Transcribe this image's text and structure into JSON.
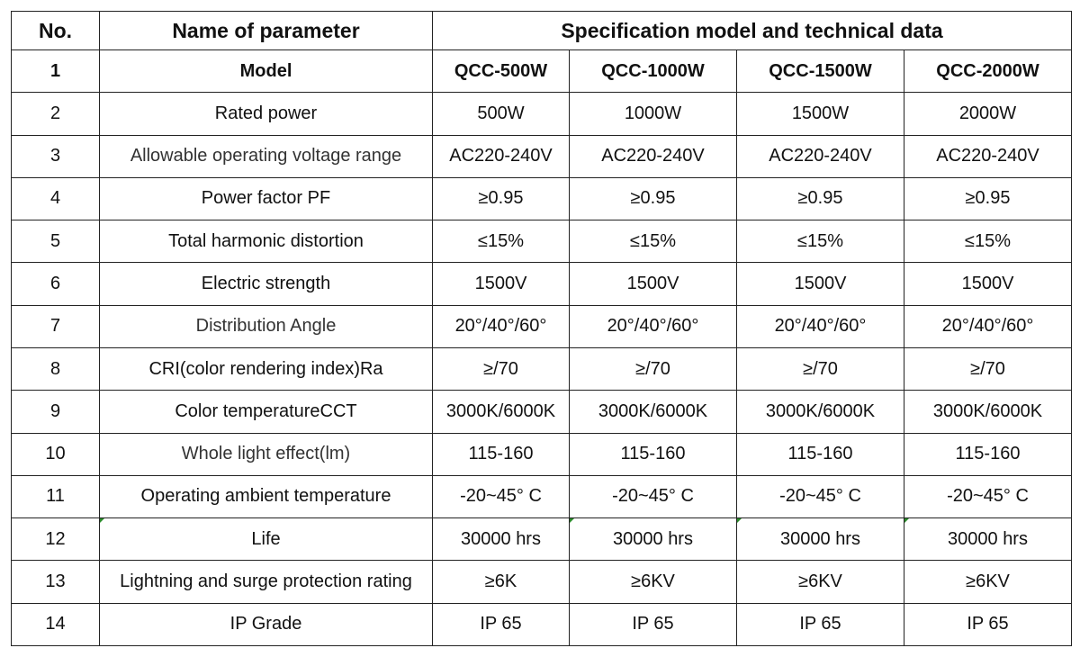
{
  "header": {
    "no": "No.",
    "parameter": "Name of parameter",
    "spec": "Specification model and technical data"
  },
  "rows": [
    {
      "no": "1",
      "name": "Model",
      "values": [
        "QCC-500W",
        "QCC-1000W",
        "QCC-1500W",
        "QCC-2000W"
      ]
    },
    {
      "no": "2",
      "name": "Rated power",
      "values": [
        "500W",
        "1000W",
        "1500W",
        "2000W"
      ]
    },
    {
      "no": "3",
      "name": "Allowable operating voltage range",
      "values": [
        "AC220-240V",
        "AC220-240V",
        "AC220-240V",
        "AC220-240V"
      ]
    },
    {
      "no": "4",
      "name": "Power factor PF",
      "values": [
        "≥0.95",
        "≥0.95",
        "≥0.95",
        "≥0.95"
      ]
    },
    {
      "no": "5",
      "name": "Total harmonic distortion",
      "values": [
        "≤15%",
        "≤15%",
        "≤15%",
        "≤15%"
      ]
    },
    {
      "no": "6",
      "name": "Electric strength",
      "values": [
        "1500V",
        "1500V",
        "1500V",
        "1500V"
      ]
    },
    {
      "no": "7",
      "name": "Distribution Angle",
      "values": [
        "20°/40°/60°",
        "20°/40°/60°",
        "20°/40°/60°",
        "20°/40°/60°"
      ]
    },
    {
      "no": "8",
      "name": "CRI(color rendering index)Ra",
      "values": [
        "≥/70",
        "≥/70",
        "≥/70",
        "≥/70"
      ]
    },
    {
      "no": "9",
      "name": "Color temperatureCCT",
      "values": [
        "3000K/6000K",
        "3000K/6000K",
        "3000K/6000K",
        "3000K/6000K"
      ]
    },
    {
      "no": "10",
      "name": "Whole light effect(lm)",
      "values": [
        "115-160",
        "115-160",
        "115-160",
        "115-160"
      ]
    },
    {
      "no": "11",
      "name": "Operating ambient temperature",
      "values": [
        "-20~45° C",
        "-20~45° C",
        "-20~45° C",
        "-20~45° C"
      ]
    },
    {
      "no": "12",
      "name": "Life",
      "values": [
        "30000 hrs",
        "30000 hrs",
        "30000 hrs",
        "30000 hrs"
      ]
    },
    {
      "no": "13",
      "name": "Lightning and surge protection rating",
      "values": [
        "≥6K",
        "≥6KV",
        "≥6KV",
        "≥6KV"
      ]
    },
    {
      "no": "14",
      "name": "IP Grade",
      "values": [
        "IP 65",
        "IP 65",
        "IP 65",
        "IP 65"
      ]
    }
  ]
}
